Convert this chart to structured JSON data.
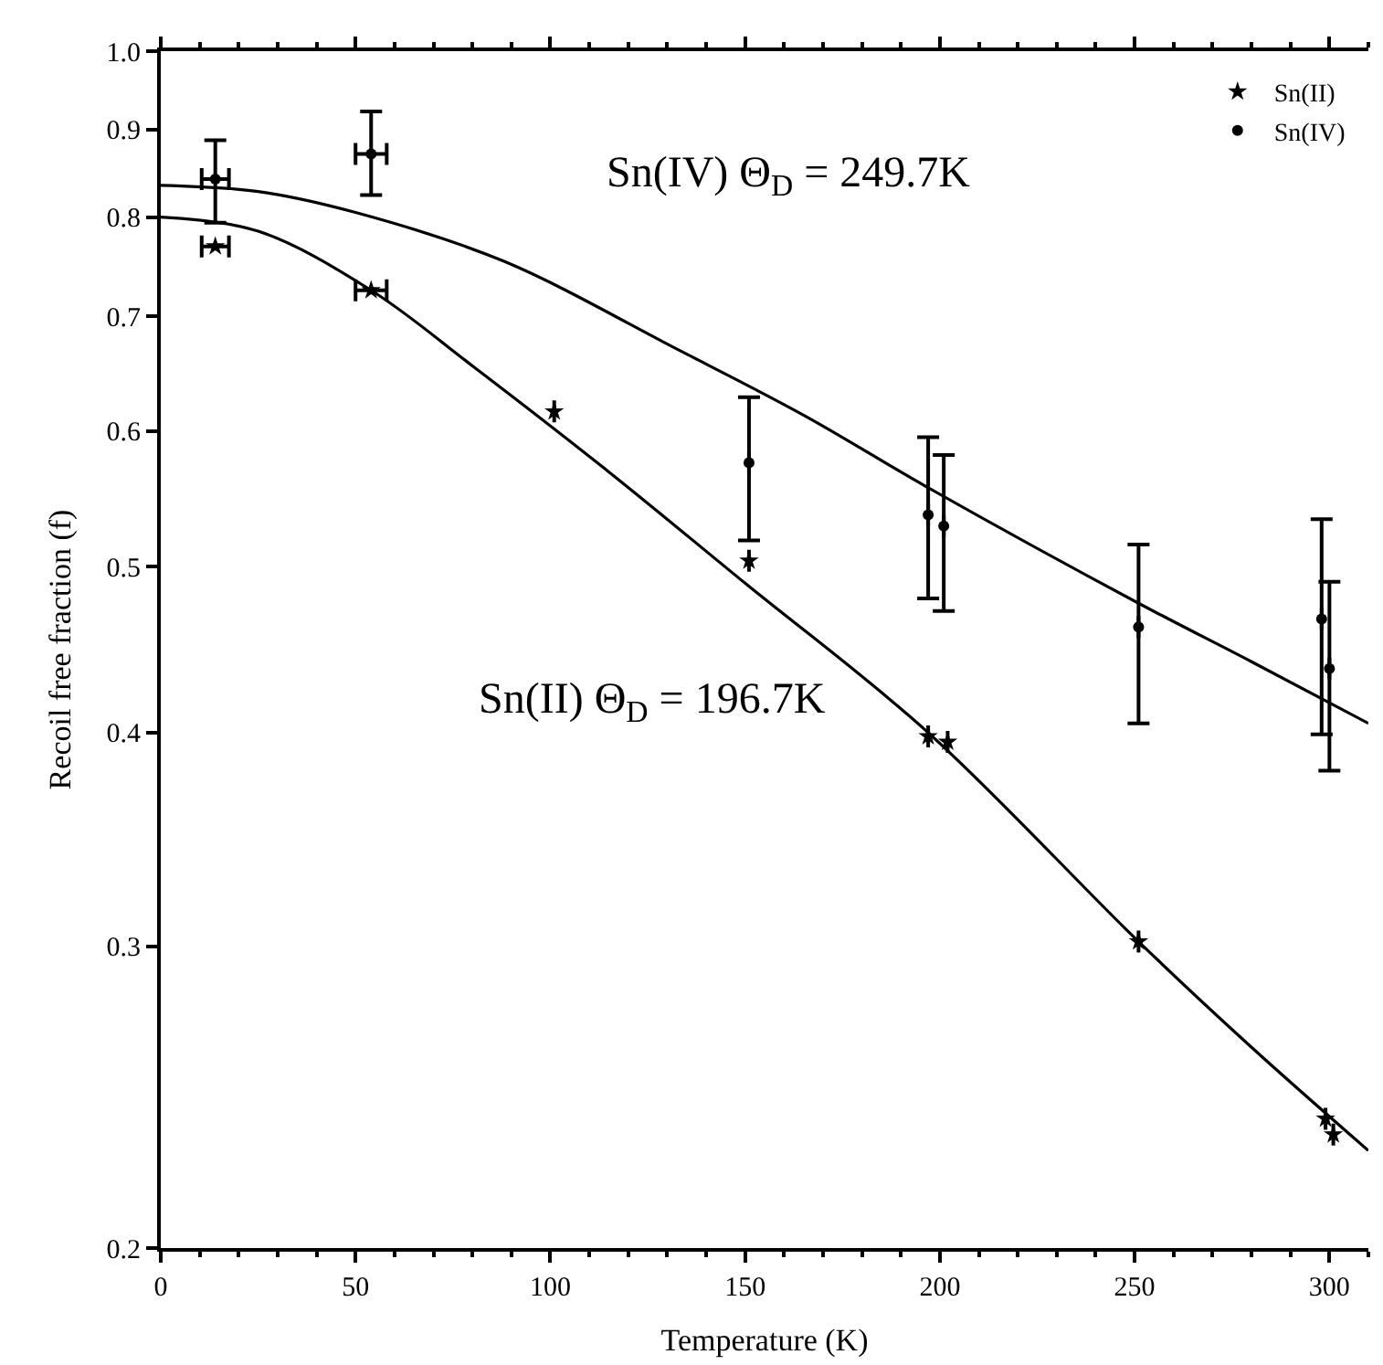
{
  "chart_data": {
    "type": "scatter",
    "xlabel": "Temperature (K)",
    "ylabel": "Recoil free fraction (f)",
    "xlim": [
      0,
      310
    ],
    "xticks": [
      0,
      50,
      100,
      150,
      200,
      250,
      300
    ],
    "ylim": [
      0.2,
      1.0
    ],
    "yticks": [
      {
        "value": 0.2,
        "label": "0.2"
      },
      {
        "value": 0.3,
        "label": "0.3"
      },
      {
        "value": 0.4,
        "label": "0.4"
      },
      {
        "value": 0.5,
        "label": "0.5"
      },
      {
        "value": 0.6,
        "label": "0.6"
      },
      {
        "value": 0.7,
        "label": "0.7"
      },
      {
        "value": 0.8,
        "label": "0.8"
      },
      {
        "value": 0.9,
        "label": "0.9"
      },
      {
        "value": 1.0,
        "label": "1.0"
      }
    ],
    "log": "y",
    "grid": false,
    "legend": "top right",
    "annotations": [
      "Sn(IV) Θ$_{D}$ = 249.7K",
      "Sn(II) Θ$_{D}$ = 196.7K"
    ],
    "series": [
      {
        "name": "Sn(II)",
        "marker": "star",
        "color": "#000000",
        "x": [
          14,
          54,
          101,
          151,
          197,
          202,
          251,
          299,
          301
        ],
        "values": [
          0.769,
          0.725,
          0.616,
          0.504,
          0.398,
          0.395,
          0.302,
          0.238,
          0.233
        ],
        "xerrors": [
          3.5,
          4,
          null,
          null,
          null,
          null,
          null,
          null,
          null
        ]
      },
      {
        "name": "Sn(IV)",
        "marker": "circle",
        "color": "#000000",
        "x": [
          14,
          54,
          151,
          197,
          201,
          251,
          298,
          300
        ],
        "values": [
          0.842,
          0.871,
          0.575,
          0.536,
          0.528,
          0.461,
          0.466,
          0.436
        ],
        "errors": [
          [
            0.794,
            0.887
          ],
          [
            0.824,
            0.922
          ],
          [
            0.518,
            0.628
          ],
          [
            0.479,
            0.595
          ],
          [
            0.471,
            0.581
          ],
          [
            0.405,
            0.515
          ],
          [
            0.399,
            0.533
          ],
          [
            0.38,
            0.49
          ]
        ],
        "xerrors": [
          3.5,
          4,
          null,
          null,
          null,
          null,
          null,
          null
        ]
      },
      {
        "type": "line",
        "color": "#000000",
        "x": [
          0,
          25,
          50,
          88,
          133,
          165,
          197,
          251,
          280,
          310
        ],
        "values": [
          0.835,
          0.828,
          0.805,
          0.754,
          0.669,
          0.613,
          0.556,
          0.476,
          0.44,
          0.405
        ]
      },
      {
        "type": "line",
        "color": "#000000",
        "x": [
          0,
          25,
          54,
          80,
          115,
          150,
          197,
          251,
          280,
          310
        ],
        "values": [
          0.8,
          0.785,
          0.725,
          0.655,
          0.568,
          0.489,
          0.4,
          0.302,
          0.262,
          0.228
        ]
      }
    ]
  }
}
